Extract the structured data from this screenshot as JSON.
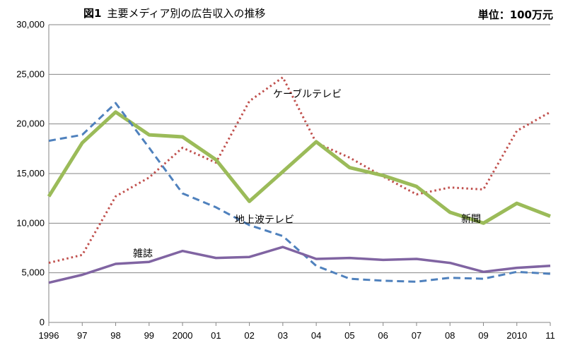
{
  "title": {
    "fig_label": "図1",
    "text": "主要メディア別の広告収入の推移"
  },
  "unit_label": "単位：100万元",
  "chart_data": {
    "type": "line",
    "categories": [
      "1996",
      "97",
      "98",
      "99",
      "2000",
      "01",
      "02",
      "03",
      "04",
      "05",
      "06",
      "07",
      "08",
      "09",
      "2010",
      "11"
    ],
    "ylim": [
      0,
      30000
    ],
    "yticks": [
      0,
      5000,
      10000,
      15000,
      20000,
      25000,
      30000
    ],
    "ytick_labels": [
      "0",
      "5,000",
      "10,000",
      "15,000",
      "20,000",
      "25,000",
      "30,000"
    ],
    "grid": "horizontal",
    "series": [
      {
        "name": "ケーブルテレビ",
        "color": "#c0504d",
        "style": "dotted",
        "values": [
          6000,
          6800,
          12700,
          14600,
          17600,
          16100,
          22300,
          24700,
          18100,
          16600,
          14700,
          12900,
          13600,
          13400,
          19300,
          21200
        ]
      },
      {
        "name": "新聞",
        "color": "#9bbb59",
        "style": "solid",
        "values": [
          12700,
          18100,
          21200,
          18900,
          18700,
          16400,
          12200,
          15200,
          18200,
          15600,
          14800,
          13700,
          11100,
          10000,
          12000,
          10700
        ]
      },
      {
        "name": "地上波テレビ",
        "color": "#4f81bd",
        "style": "dashed",
        "values": [
          18300,
          18900,
          22100,
          17600,
          13000,
          11600,
          9800,
          8700,
          5700,
          4400,
          4200,
          4100,
          4500,
          4400,
          5100,
          4900
        ]
      },
      {
        "name": "雑誌",
        "color": "#8064a2",
        "style": "solid",
        "values": [
          4000,
          4800,
          5900,
          6100,
          7200,
          6500,
          6600,
          7600,
          6400,
          6500,
          6300,
          6400,
          6000,
          5100,
          5500,
          5700
        ]
      }
    ]
  }
}
